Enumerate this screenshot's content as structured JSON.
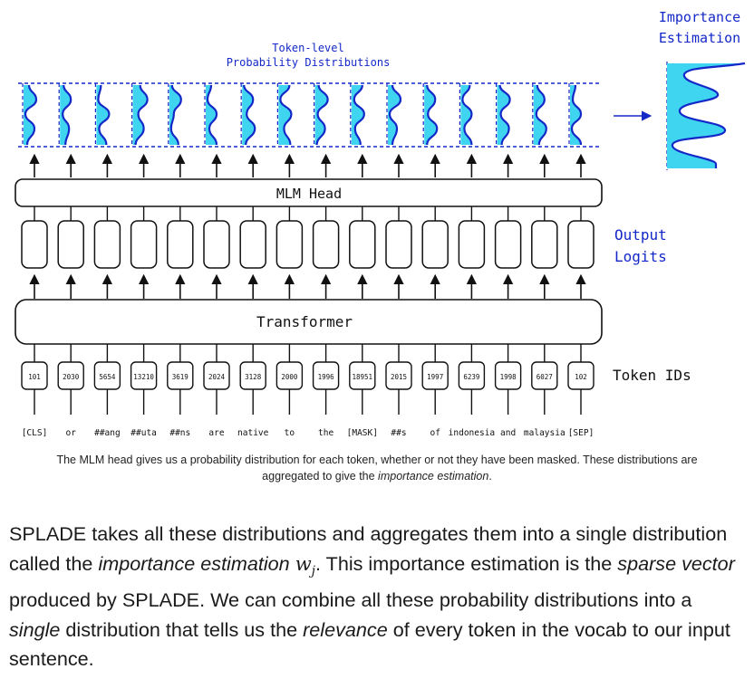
{
  "diagram": {
    "title_token_level_line1": "Token-level",
    "title_token_level_line2": "Probability Distributions",
    "importance_line1": "Importance",
    "importance_line2": "Estimation",
    "mlm_head_label": "MLM Head",
    "transformer_label": "Transformer",
    "output_logits_line1": "Output",
    "output_logits_line2": "Logits",
    "token_ids_label": "Token IDs",
    "token_ids": [
      "101",
      "2030",
      "5654",
      "13210",
      "3619",
      "2024",
      "3128",
      "2000",
      "1996",
      "18951",
      "2015",
      "1997",
      "6239",
      "1998",
      "6027",
      "102"
    ],
    "tokens": [
      "[CLS]",
      "or",
      "##ang",
      "##uta",
      "##ns",
      "are",
      "native",
      "to",
      "the",
      "[MASK]",
      "##s",
      "of",
      "indonesia",
      "and",
      "malaysia",
      "[SEP]"
    ],
    "colors": {
      "ink": "#111111",
      "blue": "#1428c8",
      "fill": "#3fd5f0"
    }
  },
  "caption": {
    "text": "The MLM head gives us a probability distribution for each token, whether or not they have been masked. These distributions are aggregated to give the ",
    "emph": "importance estimation",
    "end": "."
  },
  "paragraph": {
    "p1": "SPLADE takes all these distributions and aggregates them into a single distribution called the ",
    "e1": "importance estimation",
    "math_base": "w",
    "math_sub": "j",
    "p2": ". This importance estimation is the ",
    "e2": "sparse vector",
    "p3": " produced by SPLADE. We can combine all these probability distributions into a ",
    "e3": "single",
    "p4": " distribution that tells us the ",
    "e4": "relevance",
    "p5": " of every token in the vocab to our input sentence."
  }
}
